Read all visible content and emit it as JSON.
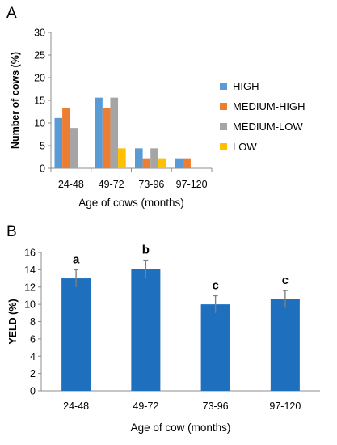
{
  "panels": {
    "a": "A",
    "b": "B"
  },
  "chart_data": [
    {
      "type": "bar",
      "categories": [
        "24-48",
        "49-72",
        "73-96",
        "97-120"
      ],
      "series": [
        {
          "name": "HIGH",
          "color": "#5b9bd5",
          "values": [
            11.1,
            15.6,
            4.4,
            2.2
          ]
        },
        {
          "name": "MEDIUM-HIGH",
          "color": "#ed7d31",
          "values": [
            13.3,
            13.3,
            2.2,
            2.2
          ]
        },
        {
          "name": "MEDIUM-LOW",
          "color": "#a5a5a5",
          "values": [
            8.9,
            15.6,
            4.4,
            0
          ]
        },
        {
          "name": "LOW",
          "color": "#ffc000",
          "values": [
            0,
            4.4,
            2.2,
            0
          ]
        }
      ],
      "xlabel": "Age of cows (months)",
      "ylabel": "Number of cows (%)",
      "ylim": [
        0,
        30
      ],
      "yticks": [
        0,
        5,
        10,
        15,
        20,
        25,
        30
      ],
      "grid": false,
      "legend": "right"
    },
    {
      "type": "bar",
      "categories": [
        "24-48",
        "49-72",
        "73-96",
        "97-120"
      ],
      "values": [
        13.0,
        14.1,
        10.0,
        10.6
      ],
      "errors": [
        1.0,
        1.0,
        1.0,
        1.0
      ],
      "significance": [
        "a",
        "b",
        "c",
        "c"
      ],
      "color": "#1f6fbf",
      "xlabel": "Age of cow (months)",
      "ylabel": "YELD (%)",
      "ylim": [
        0,
        16
      ],
      "yticks": [
        0,
        2,
        4,
        6,
        8,
        10,
        12,
        14,
        16
      ],
      "grid": false
    }
  ]
}
